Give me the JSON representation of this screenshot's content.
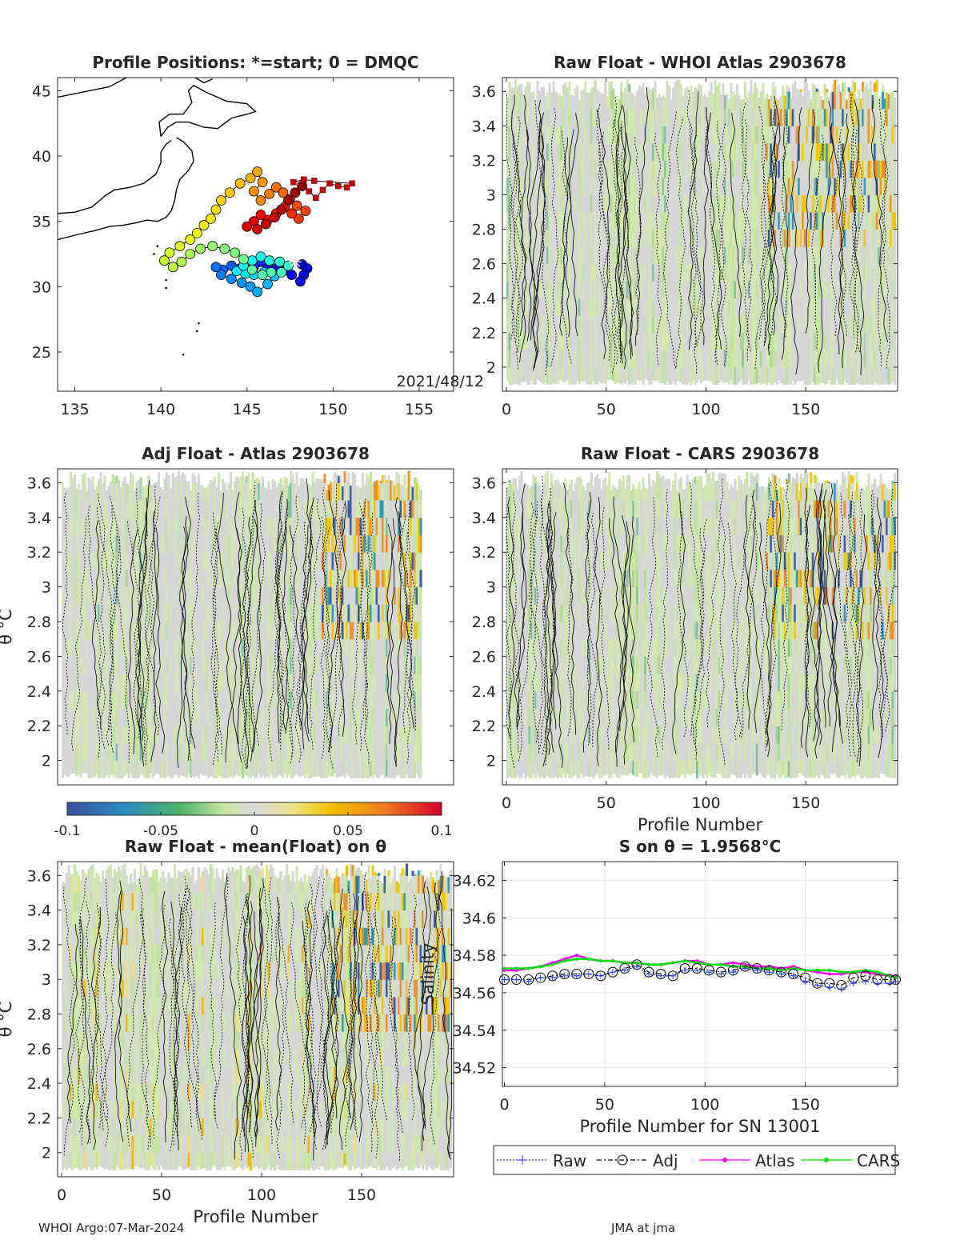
{
  "chart_data": [
    {
      "type": "scatter",
      "title": "Profile Positions: *=start; 0 = DMQC",
      "annotation": "2021/48/12",
      "xlim": [
        134,
        157
      ],
      "ylim": [
        22,
        46
      ],
      "xticks": [
        135,
        140,
        145,
        150,
        155
      ],
      "yticks": [
        25,
        30,
        35,
        40,
        45
      ],
      "grid": false,
      "start_marker": [
        147.8,
        31.9
      ],
      "dmqc_points": [
        [
          148.2,
          31.7
        ],
        [
          148.5,
          31.4
        ],
        [
          148.3,
          30.9
        ],
        [
          148.1,
          30.4
        ],
        [
          147.6,
          30.9
        ],
        [
          147.1,
          31.2
        ],
        [
          146.7,
          31.4
        ],
        [
          146.2,
          31.6
        ],
        [
          145.8,
          31.9
        ],
        [
          145.4,
          31.5
        ],
        [
          145.0,
          31.2
        ],
        [
          144.6,
          31.4
        ],
        [
          144.1,
          31.6
        ],
        [
          143.6,
          31.3
        ],
        [
          143.2,
          31.5
        ],
        [
          143.5,
          30.9
        ],
        [
          144.1,
          30.6
        ],
        [
          144.7,
          30.3
        ],
        [
          145.2,
          30.0
        ],
        [
          145.6,
          29.6
        ],
        [
          146.2,
          30.2
        ],
        [
          146.6,
          30.8
        ],
        [
          146.0,
          31.1
        ],
        [
          145.4,
          30.9
        ],
        [
          144.9,
          31.0
        ],
        [
          144.4,
          31.2
        ],
        [
          144.8,
          31.6
        ],
        [
          145.3,
          32.0
        ],
        [
          145.8,
          32.3
        ],
        [
          146.3,
          32.0
        ],
        [
          146.9,
          31.9
        ],
        [
          147.4,
          31.6
        ],
        [
          147.0,
          31.1
        ],
        [
          146.4,
          31.1
        ],
        [
          145.9,
          30.9
        ],
        [
          145.3,
          31.3
        ],
        [
          144.8,
          32.1
        ],
        [
          144.3,
          32.6
        ],
        [
          143.7,
          32.9
        ],
        [
          143.0,
          33.1
        ],
        [
          142.3,
          32.9
        ],
        [
          141.7,
          32.5
        ],
        [
          141.2,
          31.9
        ],
        [
          140.7,
          31.5
        ],
        [
          140.2,
          32.0
        ],
        [
          140.5,
          32.6
        ],
        [
          141.1,
          33.1
        ],
        [
          141.7,
          33.6
        ],
        [
          142.1,
          34.1
        ],
        [
          142.5,
          34.7
        ],
        [
          142.9,
          35.2
        ],
        [
          143.2,
          35.9
        ],
        [
          143.5,
          36.6
        ],
        [
          144.0,
          37.2
        ],
        [
          144.6,
          37.9
        ],
        [
          145.2,
          38.3
        ],
        [
          145.6,
          38.8
        ],
        [
          145.9,
          38.0
        ],
        [
          145.4,
          37.3
        ],
        [
          145.8,
          36.6
        ],
        [
          146.3,
          37.1
        ],
        [
          146.7,
          37.6
        ],
        [
          147.1,
          37.2
        ],
        [
          147.5,
          36.7
        ],
        [
          147.9,
          36.2
        ],
        [
          148.4,
          35.8
        ],
        [
          148.0,
          35.2
        ],
        [
          147.6,
          35.6
        ],
        [
          147.2,
          36.1
        ],
        [
          146.7,
          35.6
        ],
        [
          146.2,
          35.1
        ],
        [
          145.8,
          35.5
        ],
        [
          145.4,
          35.0
        ],
        [
          145.0,
          34.6
        ],
        [
          145.6,
          34.4
        ],
        [
          146.1,
          34.8
        ],
        [
          146.6,
          35.3
        ],
        [
          147.0,
          35.9
        ],
        [
          147.4,
          36.6
        ],
        [
          147.8,
          37.2
        ],
        [
          148.2,
          37.7
        ]
      ],
      "recent_points": [
        [
          148.6,
          37.3
        ],
        [
          149.0,
          36.8
        ],
        [
          149.4,
          37.4
        ],
        [
          149.8,
          37.9
        ],
        [
          150.3,
          37.7
        ],
        [
          150.8,
          37.6
        ],
        [
          151.1,
          37.9
        ],
        [
          148.9,
          38.1
        ],
        [
          148.3,
          38.2
        ],
        [
          147.7,
          38.0
        ]
      ]
    },
    {
      "type": "heatmap",
      "title": "Raw Float - WHOI Atlas  2903678",
      "xlim": [
        -2,
        196
      ],
      "ylim": [
        1.86,
        3.68
      ],
      "xticks": [
        0,
        50,
        100,
        150
      ],
      "yticks": [
        2,
        2.2,
        2.4,
        2.6,
        2.8,
        3,
        3.2,
        3.4,
        3.6
      ],
      "xlabel": "",
      "ylabel": ""
    },
    {
      "type": "heatmap",
      "title": "Adj Float - Atlas  2903678",
      "xlim": [
        -2,
        196
      ],
      "ylim": [
        1.86,
        3.68
      ],
      "xticks": [],
      "yticks": [
        2,
        2.2,
        2.4,
        2.6,
        2.8,
        3,
        3.2,
        3.4,
        3.6
      ],
      "xlabel": "",
      "ylabel": "θ °C"
    },
    {
      "type": "heatmap",
      "title": "Raw Float - CARS  2903678",
      "xlim": [
        -2,
        196
      ],
      "ylim": [
        1.86,
        3.68
      ],
      "xticks": [
        0,
        50,
        100,
        150
      ],
      "yticks": [
        2,
        2.2,
        2.4,
        2.6,
        2.8,
        3,
        3.2,
        3.4,
        3.6
      ],
      "xlabel": "Profile Number",
      "ylabel": ""
    },
    {
      "type": "heatmap",
      "title": "Raw Float - mean(Float) on θ",
      "xlim": [
        -2,
        196
      ],
      "ylim": [
        1.86,
        3.68
      ],
      "xticks": [
        0,
        50,
        100,
        150
      ],
      "yticks": [
        2,
        2.2,
        2.4,
        2.6,
        2.8,
        3,
        3.2,
        3.4,
        3.6
      ],
      "xlabel": "Profile Number",
      "ylabel": "θ °C"
    },
    {
      "type": "line",
      "title": "S on θ = 1.9568°C",
      "xlim": [
        -1,
        196
      ],
      "ylim": [
        34.51,
        34.63
      ],
      "xticks": [
        0,
        50,
        100,
        150
      ],
      "yticks": [
        34.52,
        34.54,
        34.56,
        34.58,
        34.6,
        34.62
      ],
      "xlabel": "Profile Number for SN 13001",
      "ylabel": "Salinity",
      "grid": true,
      "legend": "bottom",
      "series": [
        {
          "name": "Raw",
          "color": "#1f3fff",
          "style": "dotted",
          "marker": "star"
        },
        {
          "name": "Adj",
          "color": "#000000",
          "style": "dashdot",
          "marker": "circle"
        },
        {
          "name": "Atlas",
          "color": "#ff00ff",
          "style": "solid",
          "marker": "dot"
        },
        {
          "name": "CARS",
          "color": "#00dd00",
          "style": "solid",
          "marker": "dot"
        }
      ],
      "x": [
        0,
        6,
        12,
        18,
        24,
        30,
        36,
        42,
        48,
        54,
        60,
        66,
        72,
        78,
        84,
        90,
        96,
        102,
        108,
        114,
        120,
        126,
        132,
        138,
        144,
        150,
        156,
        162,
        168,
        174,
        180,
        186,
        192,
        195
      ],
      "values": {
        "Raw": [
          34.567,
          34.567,
          34.566,
          34.568,
          34.568,
          34.569,
          34.569,
          34.57,
          34.569,
          34.571,
          34.572,
          34.574,
          34.57,
          34.569,
          34.569,
          34.572,
          34.572,
          34.571,
          34.57,
          34.571,
          34.573,
          34.572,
          34.571,
          34.57,
          34.569,
          34.566,
          34.564,
          34.563,
          34.562,
          34.565,
          34.566,
          34.565,
          34.565,
          34.566
        ],
        "Adj": [
          34.567,
          34.567,
          34.567,
          34.568,
          34.569,
          34.57,
          34.57,
          34.57,
          34.569,
          34.571,
          34.573,
          34.575,
          34.571,
          34.57,
          34.569,
          34.573,
          34.573,
          34.572,
          34.571,
          34.572,
          34.574,
          34.573,
          34.572,
          34.571,
          34.57,
          34.568,
          34.565,
          34.565,
          34.564,
          34.568,
          34.569,
          34.567,
          34.567,
          34.567
        ],
        "Atlas": [
          34.572,
          34.572,
          34.573,
          34.574,
          34.576,
          34.578,
          34.58,
          34.578,
          34.577,
          34.577,
          34.576,
          34.576,
          34.575,
          34.575,
          34.576,
          34.577,
          34.577,
          34.575,
          34.575,
          34.576,
          34.575,
          34.574,
          34.574,
          34.573,
          34.574,
          34.572,
          34.571,
          34.57,
          34.57,
          34.571,
          34.571,
          34.57,
          34.569,
          34.569
        ],
        "CARS": [
          34.573,
          34.573,
          34.573,
          34.574,
          34.575,
          34.577,
          34.578,
          34.578,
          34.577,
          34.577,
          34.576,
          34.576,
          34.575,
          34.575,
          34.576,
          34.577,
          34.576,
          34.575,
          34.575,
          34.574,
          34.574,
          34.573,
          34.573,
          34.572,
          34.573,
          34.572,
          34.572,
          34.572,
          34.571,
          34.571,
          34.572,
          34.571,
          34.569,
          34.568
        ]
      }
    },
    {
      "type": "colorbar",
      "ticks": [
        -0.1,
        -0.05,
        0,
        0.05,
        0.1
      ],
      "tick_labels": [
        "-0.1",
        "-0.05",
        "0",
        "0.05",
        "0.1"
      ]
    }
  ],
  "footer": {
    "left": "WHOI Argo:07-Mar-2024",
    "right": "JMA at jma"
  }
}
